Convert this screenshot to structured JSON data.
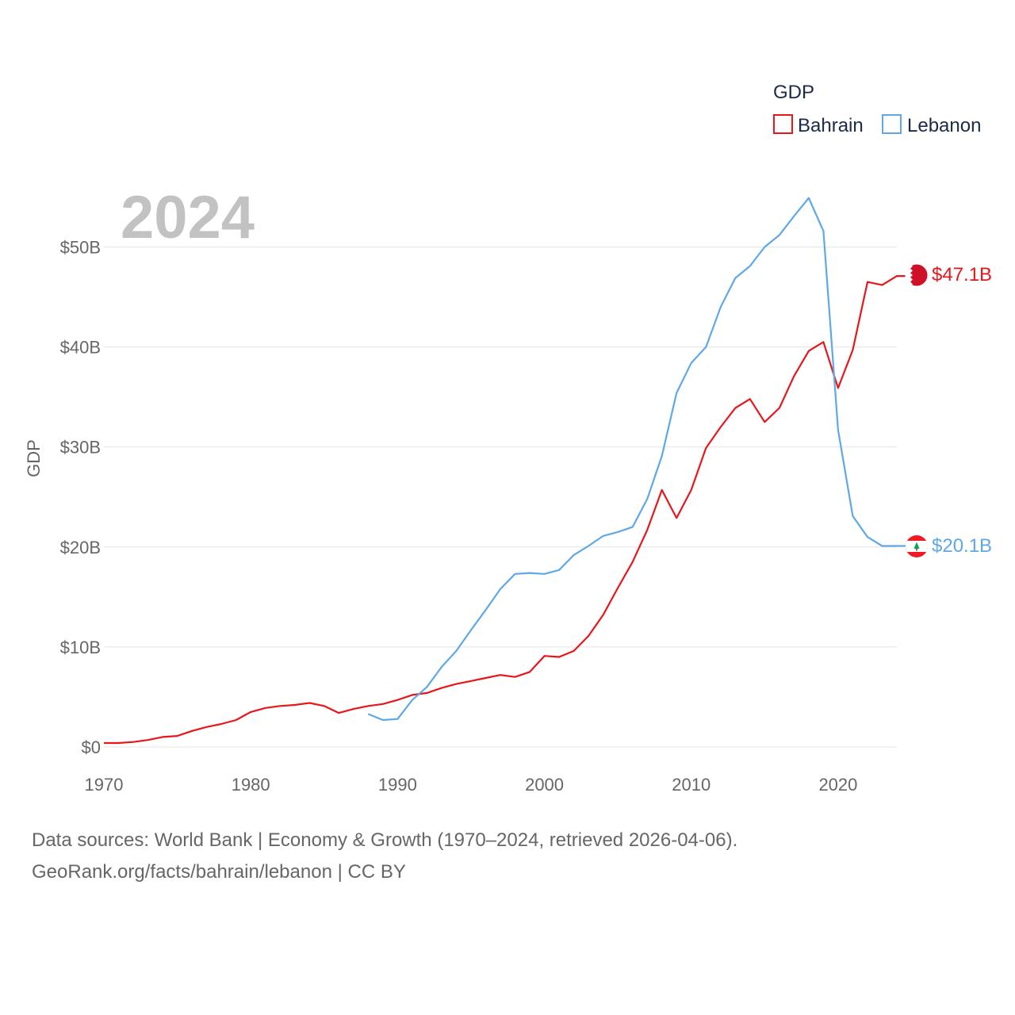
{
  "chart_data": {
    "type": "line",
    "title": "GDP",
    "year_label": "2024",
    "ylabel": "GDP",
    "xlabel": "",
    "xlim": [
      1970,
      2024
    ],
    "ylim": [
      0,
      56
    ],
    "x_ticks": [
      1970,
      1980,
      1990,
      2000,
      2010,
      2020
    ],
    "x_tick_labels": [
      "1970",
      "1980",
      "1990",
      "2000",
      "2010",
      "2020"
    ],
    "y_ticks": [
      0,
      10,
      20,
      30,
      40,
      50
    ],
    "y_tick_labels": [
      "$0",
      "$10B",
      "$20B",
      "$30B",
      "$40B",
      "$50B"
    ],
    "grid": true,
    "legend": {
      "title": "GDP",
      "placement": "top-right"
    },
    "series": [
      {
        "name": "Bahrain",
        "color": "#e8161b",
        "end_label": "$47.1B",
        "flag": "bahrain-flag",
        "x": [
          1970,
          1971,
          1972,
          1973,
          1974,
          1975,
          1976,
          1977,
          1978,
          1979,
          1980,
          1981,
          1982,
          1983,
          1984,
          1985,
          1986,
          1987,
          1988,
          1989,
          1990,
          1991,
          1992,
          1993,
          1994,
          1995,
          1996,
          1997,
          1998,
          1999,
          2000,
          2001,
          2002,
          2003,
          2004,
          2005,
          2006,
          2007,
          2008,
          2009,
          2010,
          2011,
          2012,
          2013,
          2014,
          2015,
          2016,
          2017,
          2018,
          2019,
          2020,
          2021,
          2022,
          2023,
          2024
        ],
        "values": [
          0.4,
          0.4,
          0.5,
          0.7,
          1.0,
          1.1,
          1.6,
          2.0,
          2.3,
          2.7,
          3.5,
          3.9,
          4.1,
          4.2,
          4.4,
          4.1,
          3.4,
          3.8,
          4.1,
          4.3,
          4.7,
          5.2,
          5.4,
          5.9,
          6.3,
          6.6,
          6.9,
          7.2,
          7.0,
          7.5,
          9.1,
          9.0,
          9.6,
          11.1,
          13.2,
          15.9,
          18.5,
          21.7,
          25.7,
          22.9,
          25.7,
          29.9,
          32.0,
          33.9,
          34.8,
          32.5,
          33.9,
          37.1,
          39.6,
          40.5,
          35.9,
          39.7,
          46.5,
          46.2,
          47.1
        ]
      },
      {
        "name": "Lebanon",
        "color": "#5fa8e8",
        "end_label": "$20.1B",
        "flag": "lebanon-flag",
        "x": [
          1988,
          1989,
          1990,
          1991,
          1992,
          1993,
          1994,
          1995,
          1996,
          1997,
          1998,
          1999,
          2000,
          2001,
          2002,
          2003,
          2004,
          2005,
          2006,
          2007,
          2008,
          2009,
          2010,
          2011,
          2012,
          2013,
          2014,
          2015,
          2016,
          2017,
          2018,
          2019,
          2020,
          2021,
          2022,
          2023,
          2024
        ],
        "values": [
          3.3,
          2.7,
          2.8,
          4.7,
          6.0,
          8.0,
          9.6,
          11.7,
          13.7,
          15.8,
          17.3,
          17.4,
          17.3,
          17.7,
          19.2,
          20.1,
          21.1,
          21.5,
          22.0,
          24.8,
          29.1,
          35.4,
          38.4,
          40.0,
          44.0,
          46.9,
          48.1,
          50.0,
          51.2,
          53.1,
          54.9,
          51.6,
          31.7,
          23.1,
          21.0,
          20.1,
          20.1
        ]
      }
    ]
  },
  "footer": {
    "line1": "Data sources: World Bank | Economy & Growth (1970–2024, retrieved 2026-04-06).",
    "line2": "GeoRank.org/facts/bahrain/lebanon | CC BY"
  }
}
